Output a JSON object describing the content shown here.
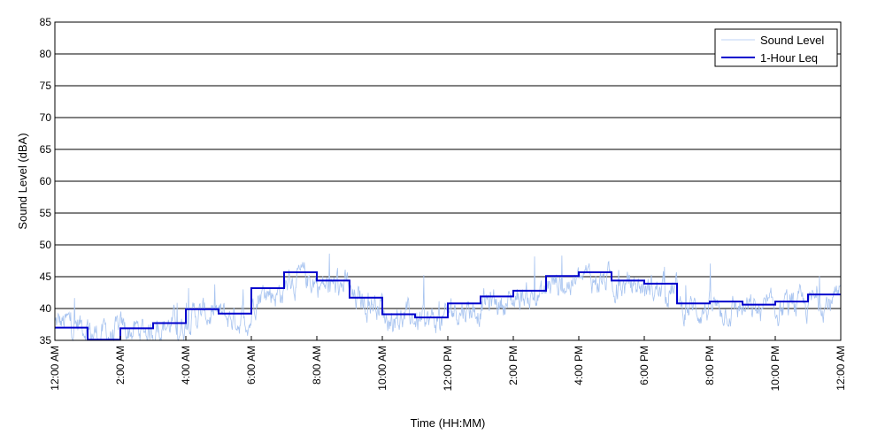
{
  "chart_data": {
    "type": "line",
    "xlabel": "Time (HH:MM)",
    "ylabel": "Sound Level (dBA)",
    "x_ticks": [
      "12:00 AM",
      "2:00 AM",
      "4:00 AM",
      "6:00 AM",
      "8:00 AM",
      "10:00 AM",
      "12:00 PM",
      "2:00 PM",
      "4:00 PM",
      "6:00 PM",
      "8:00 PM",
      "10:00 PM",
      "12:00 AM"
    ],
    "x_range_hours": [
      0,
      24
    ],
    "y_ticks": [
      35,
      40,
      45,
      50,
      55,
      60,
      65,
      70,
      75,
      80,
      85
    ],
    "ylim": [
      35,
      85
    ],
    "grid": "horizontal",
    "legend_position": "top-right",
    "series": [
      {
        "name": "Sound Level",
        "color": "#a8c4f0",
        "note_resolution": "approximate hourly mean and peak of the fluctuating trace",
        "hourly_mean": [
          37.5,
          36.0,
          36.5,
          37.5,
          39.0,
          38.5,
          42.5,
          44.5,
          43.5,
          41.0,
          38.5,
          38.0,
          40.0,
          41.0,
          42.0,
          44.0,
          44.5,
          43.5,
          43.0,
          40.0,
          40.0,
          39.5,
          40.0,
          41.0
        ],
        "hourly_peak": [
          45.0,
          45.0,
          45.0,
          42.0,
          44.0,
          48.0,
          48.5,
          50.5,
          49.0,
          47.0,
          46.0,
          48.0,
          49.0,
          50.0,
          52.5,
          50.0,
          51.0,
          49.0,
          48.0,
          45.0,
          48.0,
          45.0,
          45.5,
          48.0
        ]
      },
      {
        "name": "1-Hour Leq",
        "color": "#0000cc",
        "step": true,
        "hours": [
          0,
          1,
          2,
          3,
          4,
          5,
          6,
          7,
          8,
          9,
          10,
          11,
          12,
          13,
          14,
          15,
          16,
          17,
          18,
          19,
          20,
          21,
          22,
          23
        ],
        "values": [
          37.0,
          35.1,
          36.9,
          37.7,
          39.9,
          39.2,
          43.2,
          45.7,
          44.4,
          41.7,
          39.1,
          38.6,
          40.8,
          41.9,
          42.8,
          45.1,
          45.7,
          44.4,
          43.9,
          40.8,
          41.1,
          40.6,
          41.1,
          42.2
        ]
      }
    ]
  }
}
